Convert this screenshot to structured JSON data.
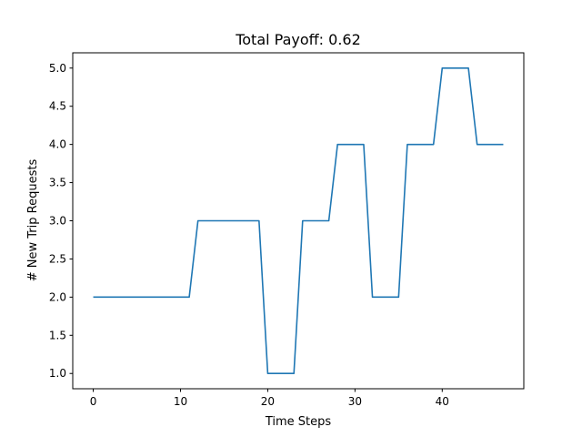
{
  "chart_data": {
    "type": "line",
    "title": "Total Payoff: 0.62",
    "xlabel": "Time Steps",
    "ylabel": "# New Trip Requests",
    "xlim": [
      -2.35,
      49.35
    ],
    "ylim": [
      0.8,
      5.2
    ],
    "xticks": [
      0,
      10,
      20,
      30,
      40
    ],
    "yticks": [
      1.0,
      1.5,
      2.0,
      2.5,
      3.0,
      3.5,
      4.0,
      4.5,
      5.0
    ],
    "ytick_labels": [
      "1.0",
      "1.5",
      "2.0",
      "2.5",
      "3.0",
      "3.5",
      "4.0",
      "4.5",
      "5.0"
    ],
    "grid": false,
    "series": [
      {
        "color": "#1f77b4",
        "x": [
          0,
          1,
          2,
          3,
          4,
          5,
          6,
          7,
          8,
          9,
          10,
          11,
          12,
          13,
          14,
          15,
          16,
          17,
          18,
          19,
          20,
          21,
          22,
          23,
          24,
          25,
          26,
          27,
          28,
          29,
          30,
          31,
          32,
          33,
          34,
          35,
          36,
          37,
          38,
          39,
          40,
          41,
          42,
          43,
          44,
          45,
          46,
          47
        ],
        "y": [
          2,
          2,
          2,
          2,
          2,
          2,
          2,
          2,
          2,
          2,
          2,
          2,
          3,
          3,
          3,
          3,
          3,
          3,
          3,
          3,
          1,
          1,
          1,
          1,
          3,
          3,
          3,
          3,
          4,
          4,
          4,
          4,
          2,
          2,
          2,
          2,
          4,
          4,
          4,
          4,
          5,
          5,
          5,
          5,
          4,
          4,
          4,
          4
        ]
      }
    ]
  }
}
